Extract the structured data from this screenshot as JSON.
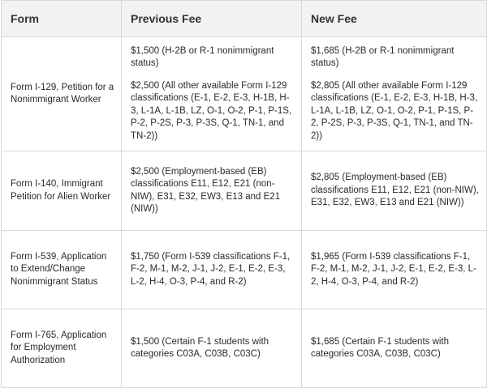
{
  "headers": [
    "Form",
    "Previous Fee",
    "New Fee"
  ],
  "rows": [
    {
      "form": "Form I-129, Petition for a Nonimmigrant Worker",
      "previous": [
        "$1,500 (H-2B or R-1 nonimmigrant status)",
        "$2,500 (All other available Form I-129 classifications (E-1, E-2, E-3, H-1B, H-3, L-1A, L-1B, LZ, O-1, O-2, P-1, P-1S, P-2, P-2S, P-3, P-3S, Q-1, TN-1, and TN-2))"
      ],
      "new": [
        "$1,685 (H-2B or R-1 nonimmigrant status)",
        "$2,805 (All other available Form I-129 classifications (E-1, E-2, E-3, H-1B, H-3, L-1A, L-1B, LZ, O-1, O-2, P-1, P-1S, P-2, P-2S, P-3, P-3S, Q-1, TN-1, and TN-2))"
      ]
    },
    {
      "form": "Form I-140, Immigrant Petition for Alien Worker",
      "previous": [
        "$2,500 (Employment-based (EB) classifications E11, E12, E21 (non-NIW), E31, E32, EW3, E13 and E21 (NIW))"
      ],
      "new": [
        "$2,805 (Employment-based (EB) classifications E11, E12, E21 (non-NIW), E31, E32, EW3, E13 and E21 (NIW))"
      ]
    },
    {
      "form": "Form I-539, Application to Extend/Change Nonimmigrant Status",
      "previous": [
        "$1,750 (Form I-539 classifications F-1, F-2, M-1, M-2, J-1, J-2, E-1, E-2, E-3, L-2, H-4, O-3, P-4, and R-2)"
      ],
      "new": [
        "$1,965 (Form I-539 classifications F-1, F-2, M-1, M-2, J-1, J-2, E-1, E-2, E-3, L-2, H-4, O-3, P-4, and R-2)"
      ]
    },
    {
      "form": "Form I-765, Application for Employment Authorization",
      "previous": [
        "$1,500 (Certain F-1 students with categories C03A, C03B, C03C)"
      ],
      "new": [
        "$1,685 (Certain F-1 students  with categories C03A, C03B, C03C)"
      ]
    }
  ]
}
